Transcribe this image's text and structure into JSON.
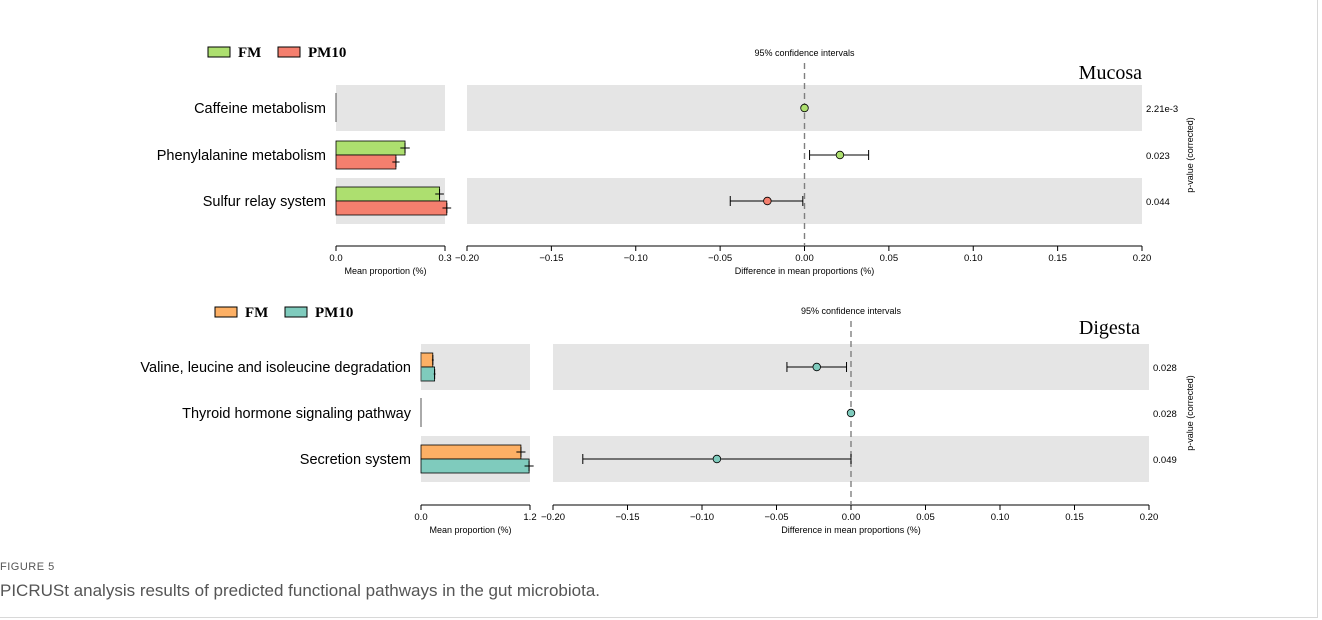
{
  "caption": {
    "label": "FIGURE 5",
    "text": "PICRUSt analysis results of predicted functional pathways in the gut microbiota."
  },
  "colors": {
    "shade": "#e5e5e5",
    "axis": "#000000",
    "dashed": "#7f7f7f",
    "caption": "#555555"
  },
  "chart_data": [
    {
      "type": "bar",
      "panel": "Mucosa",
      "title": "Mucosa",
      "legend": [
        {
          "name": "FM",
          "color": "#addf6f"
        },
        {
          "name": "PM10",
          "color": "#f47f6e"
        }
      ],
      "categories": [
        "Caffeine metabolism",
        "Phenylalanine metabolism",
        "Sulfur relay system"
      ],
      "bar_xlabel": "Mean proportion (%)",
      "bar_xlim": [
        0,
        0.3
      ],
      "bar_ticks": [
        "0.0",
        "0.3"
      ],
      "series": [
        {
          "name": "FM",
          "values": [
            0.0,
            0.19,
            0.285
          ],
          "errors": [
            0.0,
            0.013,
            0.012
          ]
        },
        {
          "name": "PM10",
          "values": [
            0.0,
            0.165,
            0.305
          ],
          "errors": [
            0.0,
            0.01,
            0.012
          ]
        }
      ],
      "ci_title": "95% confidence intervals",
      "ci_xlabel": "Difference in mean proportions (%)",
      "ci_xlim": [
        -0.2,
        0.2
      ],
      "ci_ticks": [
        "−0.20",
        "−0.15",
        "−0.10",
        "−0.05",
        "0.00",
        "0.05",
        "0.10",
        "0.15",
        "0.20"
      ],
      "differences": [
        {
          "mean": 0.0,
          "low": 0.0,
          "high": 0.0,
          "color": "#addf6f"
        },
        {
          "mean": 0.021,
          "low": 0.003,
          "high": 0.038,
          "color": "#addf6f"
        },
        {
          "mean": -0.022,
          "low": -0.044,
          "high": -0.001,
          "color": "#f47f6e"
        }
      ],
      "pvalues": [
        "2.21e-3",
        "0.023",
        "0.044"
      ],
      "pvalue_label": "p-value (corrected)"
    },
    {
      "type": "bar",
      "panel": "Digesta",
      "title": "Digesta",
      "legend": [
        {
          "name": "FM",
          "color": "#fdb065"
        },
        {
          "name": "PM10",
          "color": "#7fcbbd"
        }
      ],
      "categories": [
        "Valine, leucine and isoleucine  degradation",
        "Thyroid hormone signaling pathway",
        "Secretion system"
      ],
      "bar_xlabel": "Mean proportion (%)",
      "bar_xlim": [
        0,
        1.2
      ],
      "bar_ticks": [
        "0.0",
        "1.2"
      ],
      "series": [
        {
          "name": "FM",
          "values": [
            0.13,
            0.0,
            1.1
          ],
          "errors": [
            0.01,
            0.0,
            0.05
          ]
        },
        {
          "name": "PM10",
          "values": [
            0.15,
            0.0,
            1.19
          ],
          "errors": [
            0.01,
            0.0,
            0.05
          ]
        }
      ],
      "ci_title": "95% confidence intervals",
      "ci_xlabel": "Difference in mean proportions (%)",
      "ci_xlim": [
        -0.2,
        0.2
      ],
      "ci_ticks": [
        "−0.20",
        "−0.15",
        "−0.10",
        "−0.05",
        "0.00",
        "0.05",
        "0.10",
        "0.15",
        "0.20"
      ],
      "differences": [
        {
          "mean": -0.023,
          "low": -0.043,
          "high": -0.003,
          "color": "#7fcbbd"
        },
        {
          "mean": 0.0,
          "low": 0.0,
          "high": 0.0,
          "color": "#7fcbbd"
        },
        {
          "mean": -0.09,
          "low": -0.18,
          "high": 0.0,
          "color": "#7fcbbd"
        }
      ],
      "pvalues": [
        "0.028",
        "0.028",
        "0.049"
      ],
      "pvalue_label": "p-value (corrected)"
    }
  ]
}
